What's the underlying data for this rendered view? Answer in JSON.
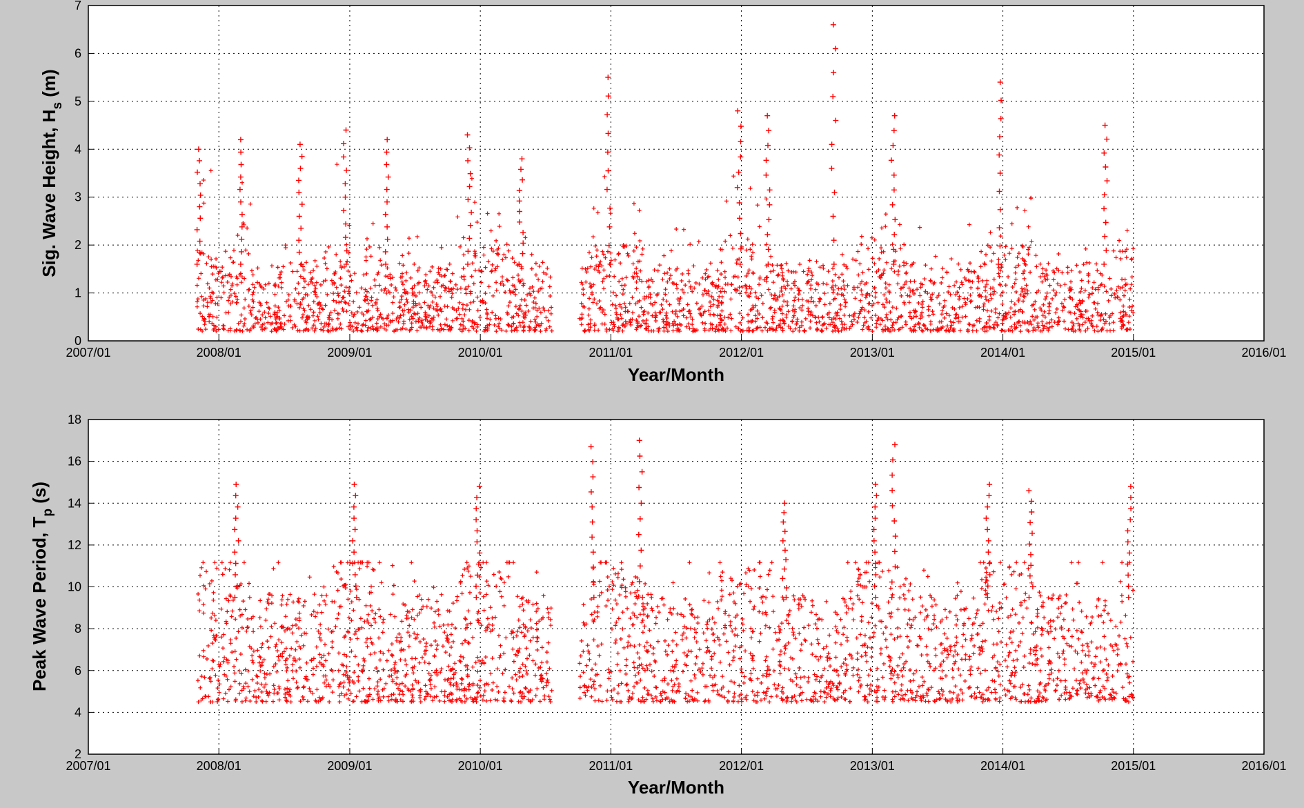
{
  "chart_data": [
    {
      "type": "scatter",
      "id": "hs",
      "title": "",
      "xlabel": "Year/Month",
      "ylabel": {
        "main": "Sig. Wave Height, H",
        "sub": "s",
        "unit": " (m)"
      },
      "xlim": [
        "2007/01",
        "2016/01"
      ],
      "xticks": [
        "2007/01",
        "2008/01",
        "2009/01",
        "2010/01",
        "2011/01",
        "2012/01",
        "2013/01",
        "2014/01",
        "2015/01",
        "2016/01"
      ],
      "ylim": [
        0,
        7
      ],
      "yticks": [
        0,
        1,
        2,
        3,
        4,
        5,
        6,
        7
      ],
      "grid": true,
      "marker": "+",
      "color": "#ff0000",
      "data_range": {
        "start": "2007/11",
        "end": "2015/01"
      },
      "gaps": [
        [
          "2010/07/20",
          "2010/10/05"
        ]
      ],
      "typical_range": [
        0.2,
        1.6
      ],
      "peaks": [
        [
          "2007/11/05",
          4.0
        ],
        [
          "2008/03/01",
          4.2
        ],
        [
          "2008/08/15",
          4.1
        ],
        [
          "2008/12/20",
          4.4
        ],
        [
          "2009/04/15",
          4.2
        ],
        [
          "2009/12/01",
          4.3
        ],
        [
          "2010/04/25",
          3.8
        ],
        [
          "2010/12/25",
          5.5
        ],
        [
          "2011/12/25",
          4.8
        ],
        [
          "2012/03/15",
          4.7
        ],
        [
          "2012/09/15",
          6.6
        ],
        [
          "2013/03/01",
          4.7
        ],
        [
          "2013/12/25",
          5.4
        ],
        [
          "2014/10/15",
          4.5
        ]
      ]
    },
    {
      "type": "scatter",
      "id": "tp",
      "title": "",
      "xlabel": "Year/Month",
      "ylabel": {
        "main": "Peak Wave Period, T",
        "sub": "p",
        "unit": " (s)"
      },
      "xlim": [
        "2007/01",
        "2016/01"
      ],
      "xticks": [
        "2007/01",
        "2008/01",
        "2009/01",
        "2010/01",
        "2011/01",
        "2012/01",
        "2013/01",
        "2014/01",
        "2015/01",
        "2016/01"
      ],
      "ylim": [
        2,
        18
      ],
      "yticks": [
        2,
        4,
        6,
        8,
        10,
        12,
        14,
        16,
        18
      ],
      "grid": true,
      "marker": "+",
      "color": "#ff0000",
      "data_range": {
        "start": "2007/11",
        "end": "2015/01"
      },
      "gaps": [
        [
          "2010/07/20",
          "2010/10/05"
        ]
      ],
      "typical_range": [
        4.5,
        9.5
      ],
      "peaks": [
        [
          "2008/02/20",
          14.9
        ],
        [
          "2009/01/15",
          14.9
        ],
        [
          "2009/12/25",
          14.8
        ],
        [
          "2010/11/10",
          16.7
        ],
        [
          "2011/03/25",
          17.0
        ],
        [
          "2012/05/01",
          14.0
        ],
        [
          "2013/01/10",
          14.9
        ],
        [
          "2013/03/01",
          16.8
        ],
        [
          "2013/11/20",
          14.9
        ],
        [
          "2014/03/20",
          14.6
        ],
        [
          "2014/12/20",
          14.8
        ]
      ]
    }
  ]
}
